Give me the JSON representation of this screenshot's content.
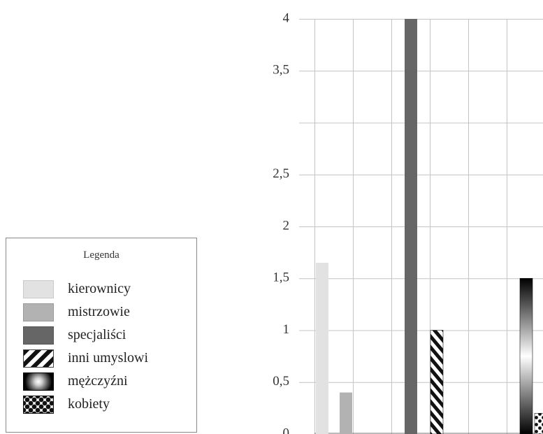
{
  "chart_data": {
    "type": "bar",
    "title": "",
    "xlabel": "",
    "ylabel": "",
    "ylim": [
      0,
      4
    ],
    "yticks": [
      {
        "value": 0,
        "label": "0"
      },
      {
        "value": 0.5,
        "label": "0,5"
      },
      {
        "value": 1,
        "label": "1"
      },
      {
        "value": 1.5,
        "label": "1,5"
      },
      {
        "value": 2,
        "label": "2"
      },
      {
        "value": 2.5,
        "label": "2,5"
      },
      {
        "value": 3.5,
        "label": "3,5"
      },
      {
        "value": 4,
        "label": "4"
      }
    ],
    "grid": true,
    "legend_position": "bottom-left",
    "series": [
      {
        "name": "kierownicy",
        "values": [
          1.65,
          0
        ],
        "color": "#e2e2e2"
      },
      {
        "name": "mistrzowie",
        "values": [
          0.4,
          0
        ],
        "color": "#b2b2b2"
      },
      {
        "name": "specjaliści",
        "values": [
          4.0,
          0
        ],
        "color": "#666666"
      },
      {
        "name": "inni umyslowi",
        "values": [
          1.0,
          0
        ],
        "color": "#222222"
      },
      {
        "name": "mężczyźni",
        "values": [
          1.5,
          0
        ],
        "color": "#000000"
      },
      {
        "name": "kobiety",
        "values": [
          0.2,
          0
        ],
        "color": "#111111"
      }
    ]
  },
  "legend": {
    "title": "Legenda",
    "items": [
      {
        "label": "kierownicy",
        "icon": "light-gray-swatch"
      },
      {
        "label": "mistrzowie",
        "icon": "gray-swatch"
      },
      {
        "label": "specjaliści",
        "icon": "dark-gray-swatch"
      },
      {
        "label": "inni umyslowi",
        "icon": "diagonal-stripes-swatch"
      },
      {
        "label": "mężczyźni",
        "icon": "radial-gradient-swatch"
      },
      {
        "label": "kobiety",
        "icon": "polka-dot-swatch"
      }
    ]
  }
}
